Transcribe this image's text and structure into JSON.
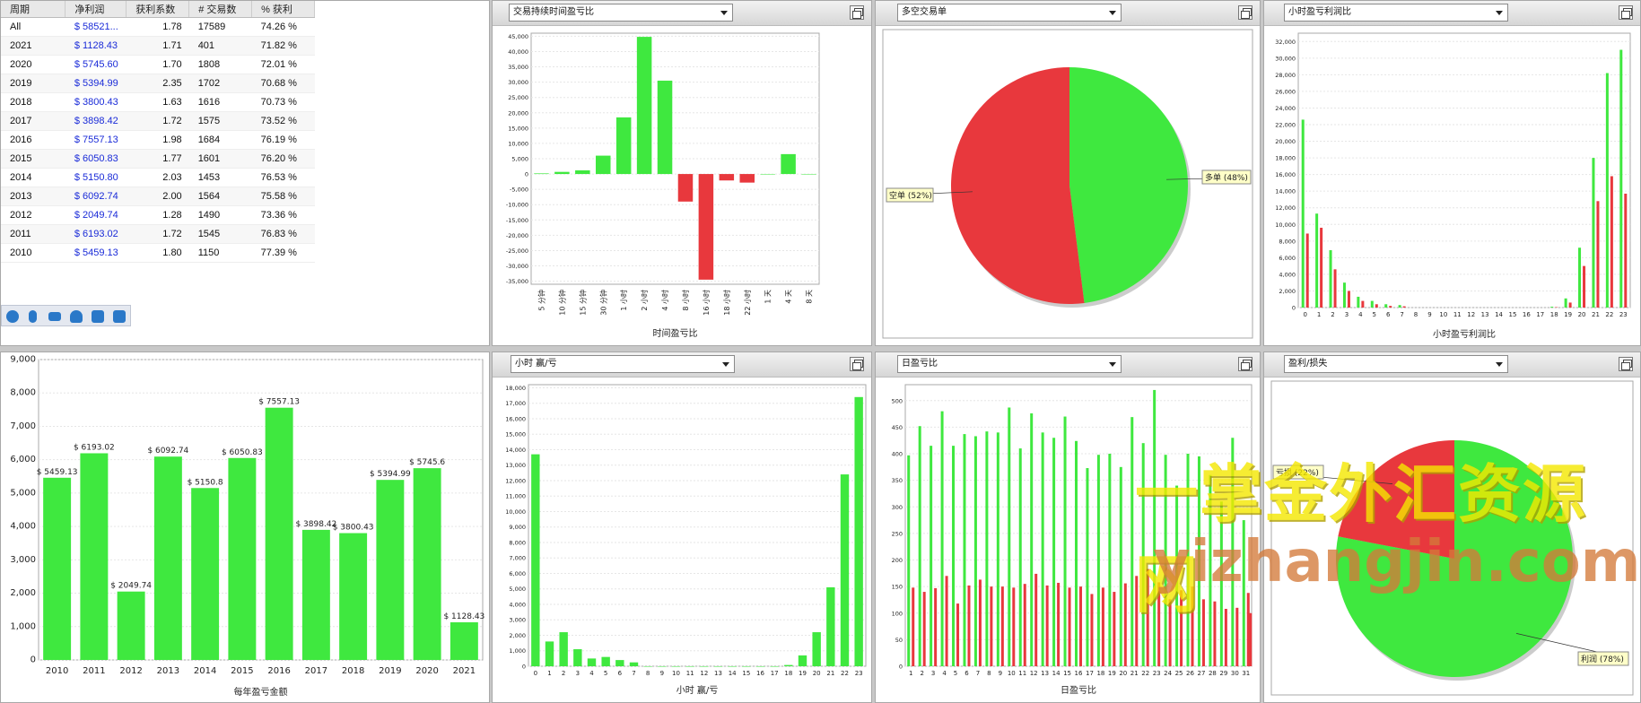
{
  "table": {
    "headers": [
      "周期",
      "净利润",
      "获利系数",
      "# 交易数",
      "% 获利"
    ],
    "rows": [
      [
        "All",
        "$ 58521...",
        "1.78",
        "17589",
        "74.26 %"
      ],
      [
        "2021",
        "$ 1128.43",
        "1.71",
        "401",
        "71.82 %"
      ],
      [
        "2020",
        "$ 5745.60",
        "1.70",
        "1808",
        "72.01 %"
      ],
      [
        "2019",
        "$ 5394.99",
        "2.35",
        "1702",
        "70.68 %"
      ],
      [
        "2018",
        "$ 3800.43",
        "1.63",
        "1616",
        "70.73 %"
      ],
      [
        "2017",
        "$ 3898.42",
        "1.72",
        "1575",
        "73.52 %"
      ],
      [
        "2016",
        "$ 7557.13",
        "1.98",
        "1684",
        "76.19 %"
      ],
      [
        "2015",
        "$ 6050.83",
        "1.77",
        "1601",
        "76.20 %"
      ],
      [
        "2014",
        "$ 5150.80",
        "2.03",
        "1453",
        "76.53 %"
      ],
      [
        "2013",
        "$ 6092.74",
        "2.00",
        "1564",
        "75.58 %"
      ],
      [
        "2012",
        "$ 2049.74",
        "1.28",
        "1490",
        "73.36 %"
      ],
      [
        "2011",
        "$ 6193.02",
        "1.72",
        "1545",
        "76.83 %"
      ],
      [
        "2010",
        "$ 5459.13",
        "1.80",
        "1150",
        "77.39 %"
      ]
    ],
    "toolbar_icons": [
      "smiley-icon",
      "microphone-icon",
      "keyboard-icon",
      "user-icon",
      "shirt-icon",
      "grid-icon"
    ]
  },
  "colors": {
    "green": "#3fe83f",
    "red": "#e8383d"
  },
  "panels": {
    "duration_select": "交易持续时间盈亏比",
    "longshort_select": "多空交易单",
    "hourly_select": "小时盈亏利润比",
    "hourwl_select": "小时 赢/亏",
    "daily_select": "日盈亏比",
    "pl_select": "盈利/损失"
  },
  "watermark": {
    "line1": "一掌金外汇资源网",
    "line2": "yizhangjin.com"
  },
  "chart_data": [
    {
      "id": "duration",
      "type": "bar",
      "xlabel": "时间盈亏比",
      "categories": [
        "5 分钟",
        "10 分钟",
        "15 分钟",
        "30 分钟",
        "1 小时",
        "2 小时",
        "4 小时",
        "8 小时",
        "16 小时",
        "18 小时",
        "22 小时",
        "1 天",
        "4 天",
        "8 天"
      ],
      "values": [
        200,
        700,
        1200,
        6000,
        18500,
        44800,
        30500,
        -9000,
        -34500,
        -2100,
        -2800,
        0,
        6500,
        0
      ],
      "ylim": [
        -36000,
        46000
      ],
      "yticks": [
        -35000,
        -30000,
        -25000,
        -20000,
        -15000,
        -10000,
        -5000,
        0,
        5000,
        10000,
        15000,
        20000,
        25000,
        30000,
        35000,
        40000,
        45000
      ],
      "ytick_labels": [
        "-35,000",
        "-30,000",
        "-25,000",
        "-20,000",
        "-15,000",
        "-10,000",
        "-5,000",
        "0",
        "5,000",
        "10,000",
        "15,000",
        "20,000",
        "25,000",
        "30,000",
        "35,000",
        "40,000",
        "45,000"
      ]
    },
    {
      "id": "longshort",
      "type": "pie",
      "slices": [
        {
          "label": "多单",
          "pct_text": "48%",
          "value": 48,
          "color": "#3fe83f"
        },
        {
          "label": "空单",
          "pct_text": "52%",
          "value": 52,
          "color": "#e8383d"
        }
      ]
    },
    {
      "id": "hourly",
      "type": "bar",
      "xlabel": "小时盈亏利润比",
      "categories": [
        "0",
        "1",
        "2",
        "3",
        "4",
        "5",
        "6",
        "7",
        "8",
        "9",
        "10",
        "11",
        "12",
        "13",
        "14",
        "15",
        "16",
        "17",
        "18",
        "19",
        "20",
        "21",
        "22",
        "23"
      ],
      "series": [
        {
          "color": "#3fe83f",
          "values": [
            22600,
            11300,
            6900,
            3000,
            1300,
            800,
            400,
            300,
            0,
            0,
            0,
            0,
            0,
            0,
            0,
            0,
            0,
            0,
            100,
            1100,
            7200,
            18000,
            28200,
            31000
          ]
        },
        {
          "color": "#e8383d",
          "values": [
            8900,
            9600,
            4600,
            2000,
            800,
            400,
            200,
            150,
            0,
            0,
            0,
            0,
            0,
            0,
            0,
            0,
            0,
            0,
            50,
            600,
            5000,
            12800,
            15800,
            13700
          ]
        }
      ],
      "ylim": [
        0,
        33000
      ],
      "yticks": [
        0,
        2000,
        4000,
        6000,
        8000,
        10000,
        12000,
        14000,
        16000,
        18000,
        20000,
        22000,
        24000,
        26000,
        28000,
        30000,
        32000
      ],
      "ytick_labels": [
        "0",
        "2,000",
        "4,000",
        "6,000",
        "8,000",
        "10,000",
        "12,000",
        "14,000",
        "16,000",
        "18,000",
        "20,000",
        "22,000",
        "24,000",
        "26,000",
        "28,000",
        "30,000",
        "32,000"
      ]
    },
    {
      "id": "yearly",
      "type": "bar",
      "xlabel": "每年盈亏金额",
      "categories": [
        "2010",
        "2011",
        "2012",
        "2013",
        "2014",
        "2015",
        "2016",
        "2017",
        "2018",
        "2019",
        "2020",
        "2021"
      ],
      "values": [
        5459.13,
        6193.02,
        2049.74,
        6092.74,
        5150.8,
        6050.83,
        7557.13,
        3898.42,
        3800.43,
        5394.99,
        5745.6,
        1128.43
      ],
      "data_labels": [
        "$ 5459.13",
        "$ 6193.02",
        "$ 2049.74",
        "$ 6092.74",
        "$ 5150.8",
        "$ 6050.83",
        "$ 7557.13",
        "$ 3898.42",
        "$ 3800.43",
        "$ 5394.99",
        "$ 5745.6",
        "$ 1128.43"
      ],
      "ylim": [
        0,
        9000
      ],
      "yticks": [
        0,
        1000,
        2000,
        3000,
        4000,
        5000,
        6000,
        7000,
        8000,
        9000
      ],
      "ytick_labels": [
        "0",
        "1,000",
        "2,000",
        "3,000",
        "4,000",
        "5,000",
        "6,000",
        "7,000",
        "8,000",
        "9,000"
      ]
    },
    {
      "id": "hourwl",
      "type": "bar",
      "xlabel": "小时 赢/亏",
      "categories": [
        "0",
        "1",
        "2",
        "3",
        "4",
        "5",
        "6",
        "7",
        "8",
        "9",
        "10",
        "11",
        "12",
        "13",
        "14",
        "15",
        "16",
        "17",
        "18",
        "19",
        "20",
        "21",
        "22",
        "23"
      ],
      "values": [
        13700,
        1600,
        2200,
        1100,
        500,
        600,
        400,
        250,
        0,
        0,
        0,
        0,
        0,
        0,
        0,
        0,
        0,
        0,
        80,
        700,
        2200,
        5100,
        12400,
        17400
      ],
      "ylim": [
        0,
        18200
      ],
      "yticks": [
        0,
        1000,
        2000,
        3000,
        4000,
        5000,
        6000,
        7000,
        8000,
        9000,
        10000,
        11000,
        12000,
        13000,
        14000,
        15000,
        16000,
        17000,
        18000
      ],
      "ytick_labels": [
        "0",
        "1,000",
        "2,000",
        "3,000",
        "4,000",
        "5,000",
        "6,000",
        "7,000",
        "8,000",
        "9,000",
        "10,000",
        "11,000",
        "12,000",
        "13,000",
        "14,000",
        "15,000",
        "16,000",
        "17,000",
        "18,000"
      ]
    },
    {
      "id": "daily",
      "type": "bar",
      "xlabel": "日盈亏比",
      "categories": [
        "1",
        "2",
        "3",
        "4",
        "5",
        "6",
        "7",
        "8",
        "9",
        "10",
        "11",
        "12",
        "13",
        "14",
        "15",
        "16",
        "17",
        "18",
        "19",
        "20",
        "21",
        "22",
        "23",
        "24",
        "25",
        "26",
        "27",
        "28",
        "29",
        "30",
        "31"
      ],
      "series": [
        {
          "color": "#3fe83f",
          "values": [
            397,
            452,
            415,
            480,
            415,
            437,
            433,
            442,
            440,
            487,
            410,
            476,
            440,
            430,
            470,
            424,
            373,
            398,
            400,
            375,
            469,
            420,
            520,
            398,
            340,
            400,
            395,
            360,
            310,
            430,
            275
          ]
        },
        {
          "color": "#e8383d",
          "values": [
            148,
            140,
            147,
            170,
            118,
            152,
            163,
            150,
            150,
            148,
            155,
            174,
            152,
            157,
            148,
            150,
            136,
            148,
            140,
            156,
            170,
            183,
            158,
            126,
            143,
            150,
            126,
            122,
            108,
            110,
            138
          ]
        }
      ],
      "extra_red_last": 100,
      "ylim": [
        0,
        530
      ],
      "yticks": [
        0,
        50,
        100,
        150,
        200,
        250,
        300,
        350,
        400,
        450,
        500
      ],
      "ytick_labels": [
        "0",
        "50",
        "100",
        "150",
        "200",
        "250",
        "300",
        "350",
        "400",
        "450",
        "500"
      ]
    },
    {
      "id": "profitloss",
      "type": "pie",
      "slices": [
        {
          "label": "利润",
          "pct_text": "78%",
          "value": 78,
          "color": "#3fe83f"
        },
        {
          "label": "亏损",
          "pct_text": "22%",
          "value": 22,
          "color": "#e8383d"
        }
      ]
    }
  ]
}
